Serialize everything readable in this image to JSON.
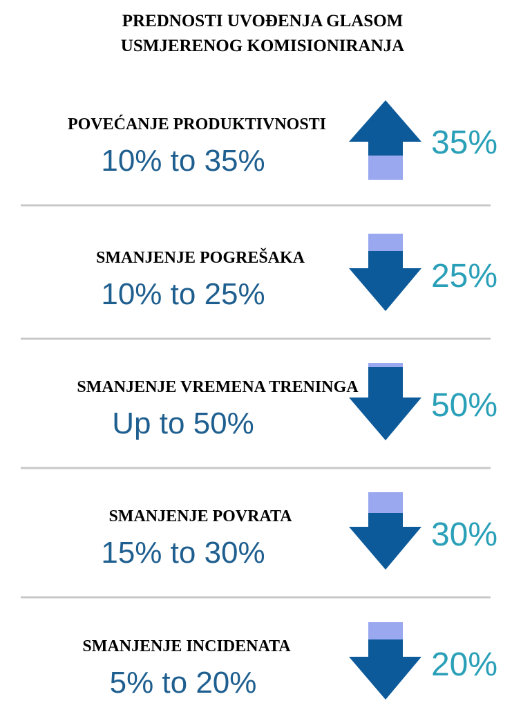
{
  "header": {
    "title_lines": [
      "PREDNOSTI UVOĐENJA GLASOM",
      "USMJERENOG KOMISIONIRANJA"
    ]
  },
  "items": [
    {
      "label": "POVEĆANJE PRODUKTIVNOSTI",
      "range": "10% to 35%",
      "value": "35%"
    },
    {
      "label": "SMANJENJE POGREŠAKA",
      "range": "10% to 25%",
      "value": "25%"
    },
    {
      "label": "SMANJENJE VREMENA TRENINGA",
      "range": "Up to 50%",
      "value": "50%"
    },
    {
      "label": "SMANJENJE POVRATA",
      "range": "15% to 30%",
      "value": "30%"
    },
    {
      "label": "SMANJENJE INCIDENATA",
      "range": "5% to 20%",
      "value": "20%"
    }
  ]
}
